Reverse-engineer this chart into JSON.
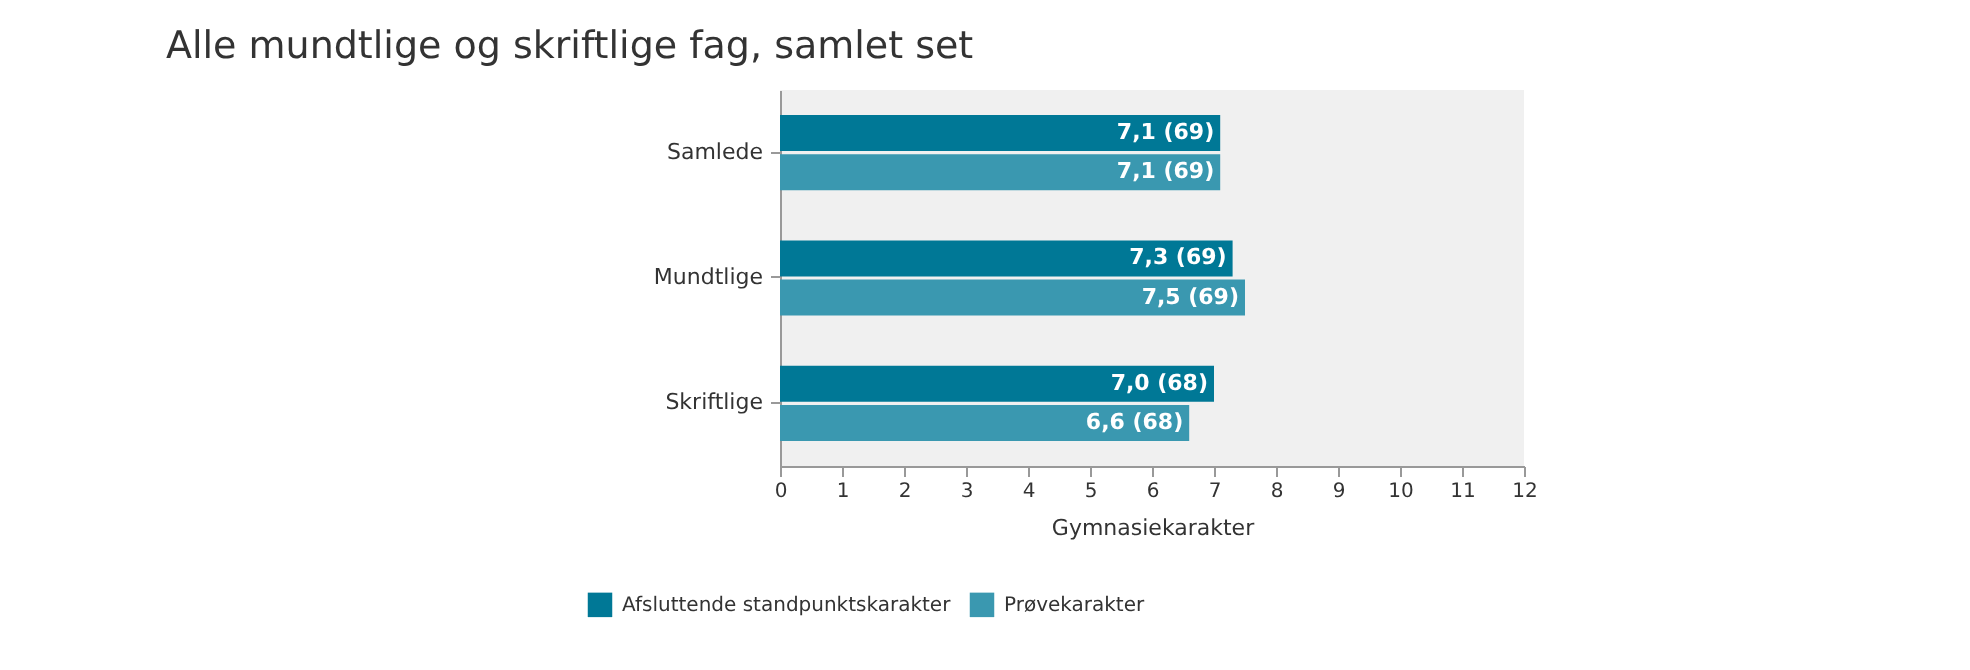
{
  "chart_data": {
    "type": "bar",
    "orientation": "horizontal",
    "title": "Alle mundtlige og skriftlige fag, samlet set",
    "xlabel": "Gymnasiekarakter",
    "categories": [
      "Samlede",
      "Mundtlige",
      "Skriftlige"
    ],
    "series": [
      {
        "name": "Afsluttende standpunktskarakter",
        "color": "#007896",
        "values": [
          7.1,
          7.3,
          7.0
        ],
        "value_labels": [
          "7,1 (69)",
          "7,3 (69)",
          "7,0 (68)"
        ]
      },
      {
        "name": "Prøvekarakter",
        "color": "#3a98b0",
        "values": [
          7.1,
          7.5,
          6.6
        ],
        "value_labels": [
          "7,1 (69)",
          "7,5 (69)",
          "6,6 (68)"
        ]
      }
    ],
    "xlim": [
      0,
      12
    ],
    "xticks": [
      0,
      1,
      2,
      3,
      4,
      5,
      6,
      7,
      8,
      9,
      10,
      11,
      12
    ],
    "grid": false,
    "legend": "bottom left"
  }
}
